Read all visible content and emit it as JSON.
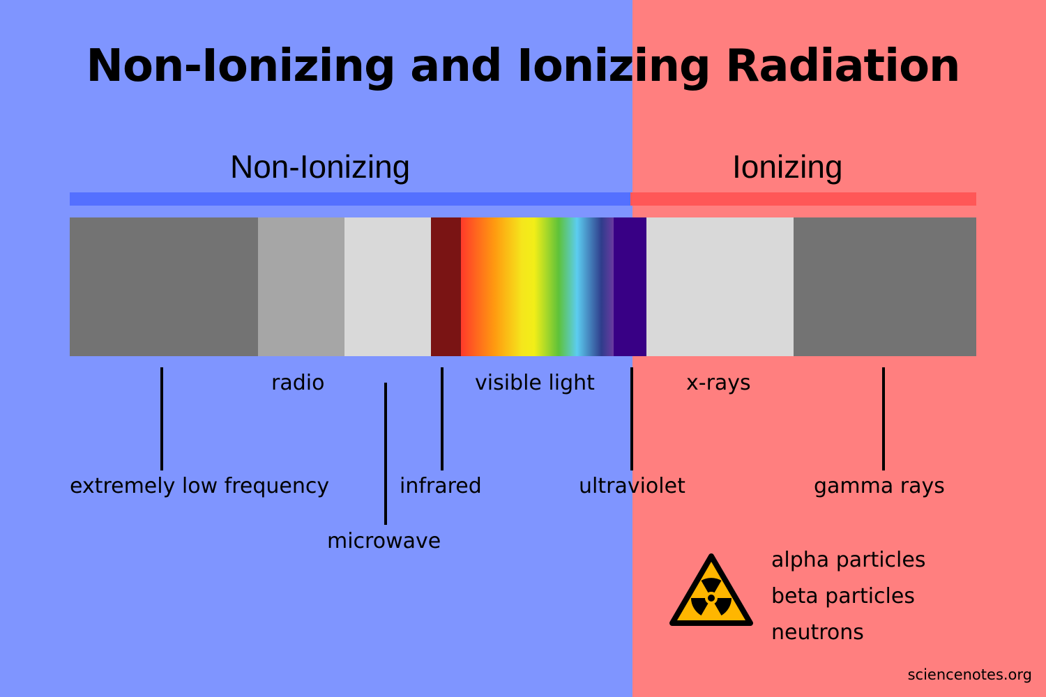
{
  "title": "Non-Ionizing and Ionizing Radiation",
  "regions": {
    "non_ionizing": {
      "label": "Non-Ionizing",
      "bg_color": "#7f95ff",
      "bar_color": "#5470ff"
    },
    "ionizing": {
      "label": "Ionizing",
      "bg_color": "#ff7f7f",
      "bar_color": "#ff5757"
    }
  },
  "spectrum_bands": [
    {
      "name": "extremely-low-frequency",
      "color": "#737373"
    },
    {
      "name": "radio",
      "color": "#a6a6a6"
    },
    {
      "name": "microwave",
      "color": "#d9d9d9"
    },
    {
      "name": "infrared",
      "color": "#7a1414"
    },
    {
      "name": "visible-light",
      "gradient": [
        "#ff3a2a",
        "#ff9a10",
        "#f5e61c",
        "#f2ee18",
        "#5ec23a",
        "#5ccdf0",
        "#2f3d8c",
        "#6a3aa0"
      ]
    },
    {
      "name": "ultraviolet",
      "color": "#380085"
    },
    {
      "name": "x-rays",
      "color": "#d9d9d9"
    },
    {
      "name": "gamma-rays",
      "color": "#737373"
    }
  ],
  "labels": {
    "extremely_low_frequency": "extremely low frequency",
    "radio": "radio",
    "microwave": "microwave",
    "infrared": "infrared",
    "visible_light": "visible light",
    "ultraviolet": "ultraviolet",
    "x_rays": "x-rays",
    "gamma_rays": "gamma rays"
  },
  "particles": [
    "alpha particles",
    "beta particles",
    "neutrons"
  ],
  "icons": {
    "hazard": "radiation-hazard-icon"
  },
  "hazard_colors": {
    "fill": "#ffb600",
    "outline": "#000000"
  },
  "credit": "sciencenotes.org"
}
